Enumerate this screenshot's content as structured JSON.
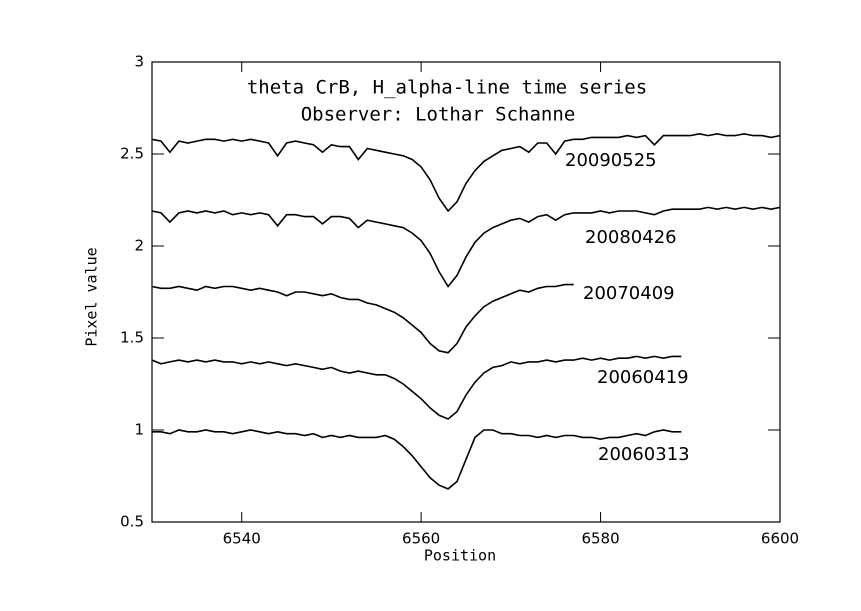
{
  "chart_data": {
    "type": "line",
    "title": "theta CrB, H_alpha-line time series",
    "subtitle": "Observer: Lothar Schanne",
    "x_label": "Position",
    "y_label": "Pixel value",
    "xlim": [
      6530,
      6600
    ],
    "ylim": [
      0.5,
      3
    ],
    "xticks": [
      6540,
      6560,
      6580,
      6600
    ],
    "yticks": [
      0.5,
      1,
      1.5,
      2,
      2.5,
      3
    ],
    "x": [
      6530,
      6531,
      6532,
      6533,
      6534,
      6535,
      6536,
      6537,
      6538,
      6539,
      6540,
      6541,
      6542,
      6543,
      6544,
      6545,
      6546,
      6547,
      6548,
      6549,
      6550,
      6551,
      6552,
      6553,
      6554,
      6555,
      6556,
      6557,
      6558,
      6559,
      6560,
      6561,
      6562,
      6563,
      6564,
      6565,
      6566,
      6567,
      6568,
      6569,
      6570,
      6571,
      6572,
      6573,
      6574,
      6575,
      6576,
      6577,
      6578,
      6579,
      6580,
      6581,
      6582,
      6583,
      6584,
      6585,
      6586,
      6587,
      6588,
      6589,
      6590,
      6591,
      6592,
      6593,
      6594,
      6595,
      6596,
      6597,
      6598,
      6599,
      6600
    ],
    "series": [
      {
        "name": "20090525",
        "color": "#000000",
        "values": [
          2.58,
          2.57,
          2.51,
          2.57,
          2.56,
          2.57,
          2.58,
          2.58,
          2.57,
          2.58,
          2.57,
          2.58,
          2.57,
          2.56,
          2.49,
          2.56,
          2.57,
          2.56,
          2.55,
          2.51,
          2.55,
          2.54,
          2.54,
          2.47,
          2.53,
          2.52,
          2.51,
          2.5,
          2.49,
          2.47,
          2.43,
          2.36,
          2.26,
          2.19,
          2.24,
          2.34,
          2.41,
          2.46,
          2.49,
          2.52,
          2.53,
          2.54,
          2.51,
          2.56,
          2.56,
          2.5,
          2.57,
          2.58,
          2.58,
          2.59,
          2.59,
          2.59,
          2.59,
          2.6,
          2.59,
          2.6,
          2.55,
          2.6,
          2.6,
          2.6,
          2.6,
          2.61,
          2.6,
          2.61,
          2.6,
          2.6,
          2.61,
          2.6,
          2.6,
          2.59,
          2.6
        ]
      },
      {
        "name": "20080426",
        "color": "#000000",
        "values": [
          2.19,
          2.18,
          2.13,
          2.18,
          2.19,
          2.18,
          2.19,
          2.18,
          2.19,
          2.17,
          2.18,
          2.17,
          2.18,
          2.17,
          2.11,
          2.17,
          2.17,
          2.16,
          2.16,
          2.12,
          2.16,
          2.16,
          2.15,
          2.1,
          2.14,
          2.13,
          2.12,
          2.11,
          2.1,
          2.07,
          2.03,
          1.96,
          1.86,
          1.78,
          1.84,
          1.94,
          2.02,
          2.07,
          2.1,
          2.12,
          2.14,
          2.15,
          2.13,
          2.16,
          2.17,
          2.14,
          2.17,
          2.18,
          2.18,
          2.18,
          2.19,
          2.18,
          2.19,
          2.19,
          2.19,
          2.18,
          2.17,
          2.19,
          2.2,
          2.2,
          2.2,
          2.2,
          2.21,
          2.2,
          2.21,
          2.2,
          2.21,
          2.2,
          2.21,
          2.2,
          2.21
        ]
      },
      {
        "name": "20070409",
        "color": "#000000",
        "values": [
          1.78,
          1.77,
          1.77,
          1.78,
          1.77,
          1.76,
          1.78,
          1.77,
          1.78,
          1.78,
          1.77,
          1.76,
          1.77,
          1.76,
          1.75,
          1.73,
          1.75,
          1.75,
          1.74,
          1.73,
          1.74,
          1.72,
          1.71,
          1.71,
          1.69,
          1.68,
          1.66,
          1.64,
          1.61,
          1.57,
          1.53,
          1.47,
          1.43,
          1.42,
          1.47,
          1.56,
          1.62,
          1.67,
          1.7,
          1.72,
          1.74,
          1.76,
          1.75,
          1.77,
          1.78,
          1.78,
          1.79,
          1.79,
          null,
          null,
          null,
          null,
          null,
          null,
          null,
          null,
          null,
          null,
          null,
          null,
          null,
          null,
          null,
          null,
          null,
          null,
          null,
          null,
          null,
          null,
          null
        ]
      },
      {
        "name": "20060419",
        "color": "#000000",
        "values": [
          1.38,
          1.36,
          1.37,
          1.38,
          1.37,
          1.38,
          1.37,
          1.38,
          1.37,
          1.37,
          1.36,
          1.37,
          1.36,
          1.37,
          1.36,
          1.35,
          1.36,
          1.35,
          1.34,
          1.33,
          1.34,
          1.32,
          1.31,
          1.32,
          1.31,
          1.3,
          1.3,
          1.28,
          1.25,
          1.21,
          1.17,
          1.12,
          1.08,
          1.06,
          1.1,
          1.19,
          1.26,
          1.31,
          1.34,
          1.35,
          1.37,
          1.36,
          1.37,
          1.37,
          1.38,
          1.37,
          1.38,
          1.38,
          1.39,
          1.38,
          1.39,
          1.38,
          1.39,
          1.39,
          1.4,
          1.39,
          1.4,
          1.39,
          1.4,
          1.4,
          null,
          null,
          null,
          null,
          null,
          null,
          null,
          null,
          null,
          null,
          null
        ]
      },
      {
        "name": "20060313",
        "color": "#000000",
        "values": [
          0.99,
          0.99,
          0.98,
          1.0,
          0.99,
          0.99,
          1.0,
          0.99,
          0.99,
          0.98,
          0.99,
          1.0,
          0.99,
          0.98,
          0.99,
          0.98,
          0.98,
          0.97,
          0.98,
          0.96,
          0.97,
          0.96,
          0.97,
          0.96,
          0.96,
          0.96,
          0.97,
          0.95,
          0.91,
          0.86,
          0.8,
          0.74,
          0.7,
          0.68,
          0.72,
          0.84,
          0.96,
          1.0,
          1.0,
          0.98,
          0.98,
          0.97,
          0.97,
          0.96,
          0.97,
          0.96,
          0.97,
          0.97,
          0.96,
          0.96,
          0.95,
          0.96,
          0.96,
          0.97,
          0.98,
          0.97,
          0.99,
          1.0,
          0.99,
          0.99,
          null,
          null,
          null,
          null,
          null,
          null,
          null,
          null,
          null,
          null,
          null
        ]
      }
    ]
  }
}
